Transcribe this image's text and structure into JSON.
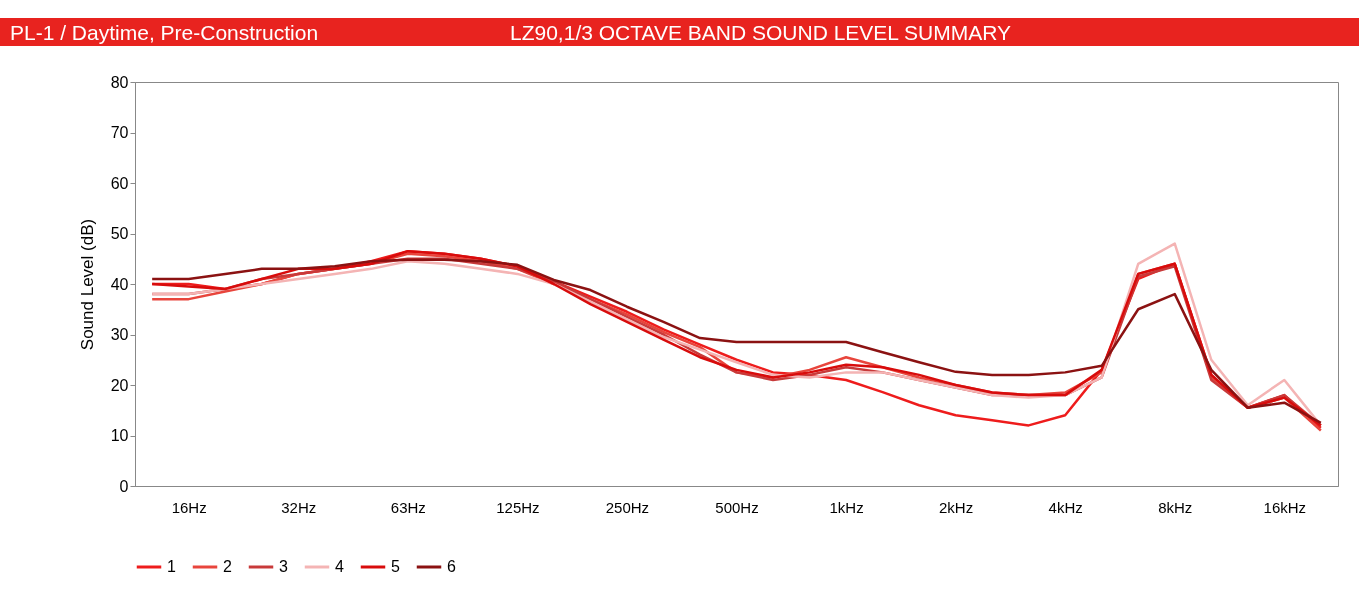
{
  "chart_data": {
    "type": "line",
    "title": "PL-1 / Daytime, Pre-Construction",
    "subtitle": "LZ90,1/3 OCTAVE BAND SOUND LEVEL SUMMARY",
    "ylabel": "Sound Level (dB)",
    "categories": [
      null,
      "16Hz",
      null,
      null,
      "32Hz",
      null,
      null,
      "63Hz",
      null,
      null,
      "125Hz",
      null,
      null,
      "250Hz",
      null,
      null,
      "500Hz",
      null,
      null,
      "1kHz",
      null,
      null,
      "2kHz",
      null,
      null,
      "4kHz",
      null,
      null,
      "8kHz",
      null,
      null,
      "16kHz",
      null
    ],
    "series": [
      {
        "name": "1",
        "color": "#ee1c1c",
        "values": [
          40,
          40,
          39,
          40,
          42,
          43,
          44.5,
          46.5,
          46,
          45,
          43.5,
          40.5,
          37.5,
          34.5,
          31,
          28,
          25,
          22.5,
          22,
          21,
          18.6,
          16,
          14,
          13,
          12,
          14,
          23,
          41,
          44,
          22,
          15.5,
          18,
          11.5
        ]
      },
      {
        "name": "2",
        "color": "#e8453c",
        "values": [
          37,
          37,
          38.5,
          40,
          42,
          43,
          44,
          46,
          45.5,
          44.5,
          43,
          40,
          37,
          34,
          30.5,
          27.5,
          22.5,
          21.5,
          23,
          25.5,
          23.5,
          21.5,
          20,
          18.5,
          18,
          18.5,
          22.5,
          42,
          44,
          21.5,
          15.5,
          17.5,
          11
        ]
      },
      {
        "name": "3",
        "color": "#c83a3a",
        "values": [
          38,
          38,
          39,
          41,
          42,
          43,
          44,
          45,
          45,
          44,
          43,
          40.5,
          37,
          33.5,
          30,
          26,
          22.5,
          21,
          22,
          23.5,
          22.5,
          21,
          19.5,
          18,
          18,
          18,
          21.5,
          41.5,
          43.5,
          21,
          15.5,
          18,
          12
        ]
      },
      {
        "name": "4",
        "color": "#f4b4b4",
        "values": [
          38,
          38,
          39,
          40,
          41,
          42,
          43,
          44.5,
          44,
          43,
          42,
          40,
          36.5,
          33,
          29.5,
          27,
          24.5,
          22,
          21.5,
          22.5,
          22.5,
          21,
          19.5,
          18,
          17.5,
          18,
          21.5,
          44,
          48,
          25,
          16,
          21,
          12
        ]
      },
      {
        "name": "5",
        "color": "#d80c0c",
        "values": [
          40,
          39.5,
          39,
          41,
          43,
          43,
          44,
          46.5,
          46,
          45,
          43.5,
          40,
          36,
          32.5,
          29,
          25.5,
          23,
          21.5,
          22.5,
          24,
          23.5,
          22,
          20,
          18.5,
          18,
          18,
          23,
          42,
          44,
          22,
          15.5,
          17.5,
          12
        ]
      },
      {
        "name": "6",
        "color": "#8b1212",
        "values": [
          41,
          41,
          42,
          43,
          43,
          43.5,
          44.5,
          44.8,
          44.8,
          44.5,
          43.8,
          40.8,
          38.8,
          35.5,
          32.5,
          29.3,
          28.5,
          28.5,
          28.5,
          28.5,
          26.5,
          24.5,
          22.6,
          22,
          22,
          22.5,
          23.8,
          35,
          38,
          23,
          15.5,
          16.5,
          12.5
        ]
      }
    ],
    "ylim": [
      0,
      80
    ],
    "yticks": [
      0,
      10,
      20,
      30,
      40,
      50,
      60,
      70,
      80
    ],
    "grid": false,
    "legend": "bottom",
    "line_style": "solid"
  }
}
